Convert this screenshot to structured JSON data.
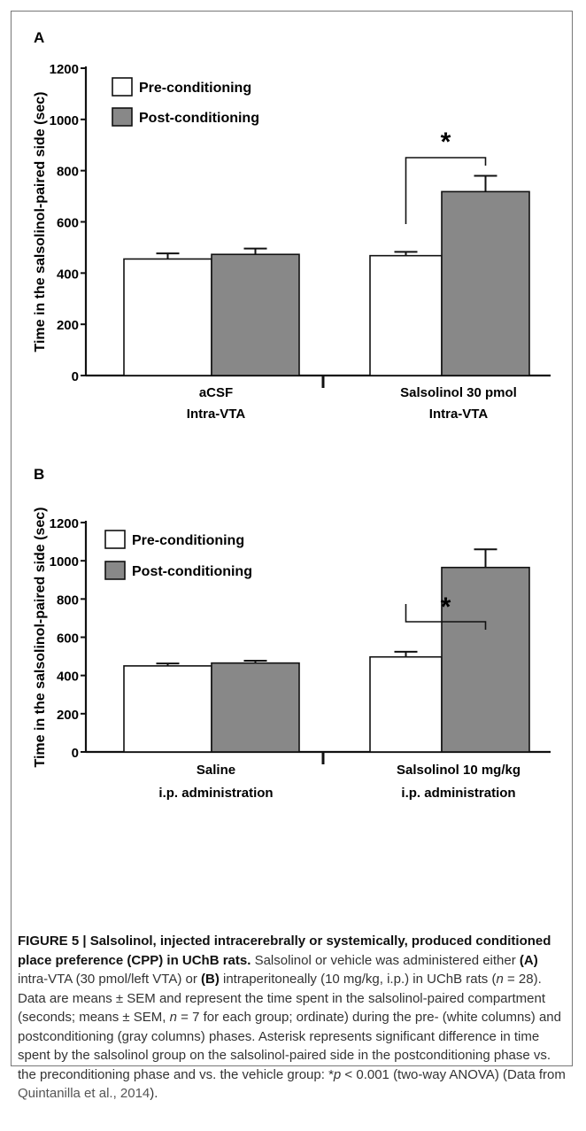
{
  "chart_data": [
    {
      "type": "bar",
      "panel": "A",
      "ylabel": "Time in the salsolinol-paired side (sec)",
      "ylim": [
        0,
        1200
      ],
      "yticks": [
        "0",
        "200",
        "400",
        "600",
        "800",
        "1000",
        "1200"
      ],
      "categories": [
        {
          "line1": "aCSF",
          "line2": "Intra-VTA"
        },
        {
          "line1": "Salsolinol 30 pmol",
          "line2": "Intra-VTA"
        }
      ],
      "series": [
        {
          "name": "Pre-conditioning",
          "color": "#ffffff",
          "values": [
            455,
            468
          ],
          "errors": [
            22,
            15
          ]
        },
        {
          "name": "Post-conditioning",
          "color": "#888888",
          "values": [
            473,
            718
          ],
          "errors": [
            23,
            62
          ]
        }
      ],
      "significance": {
        "label": "*",
        "category": 1
      }
    },
    {
      "type": "bar",
      "panel": "B",
      "ylabel": "Time in the salsolinol-paired side (sec)",
      "ylim": [
        0,
        1200
      ],
      "yticks": [
        "0",
        "200",
        "400",
        "600",
        "800",
        "1000",
        "1200"
      ],
      "categories": [
        {
          "line1": "Saline",
          "line2": "i.p. administration"
        },
        {
          "line1": "Salsolinol 10 mg/kg",
          "line2": "i.p. administration"
        }
      ],
      "series": [
        {
          "name": "Pre-conditioning",
          "color": "#ffffff",
          "values": [
            450,
            497
          ],
          "errors": [
            13,
            27
          ]
        },
        {
          "name": "Post-conditioning",
          "color": "#888888",
          "values": [
            465,
            965
          ],
          "errors": [
            12,
            95
          ]
        }
      ],
      "significance": {
        "label": "*",
        "category": 1
      }
    }
  ],
  "caption": {
    "figure_label": "FIGURE 5 | Salsolinol, injected intracerebrally or systemically, produced conditioned place preference (CPP) in UChB rats.",
    "t1": " Salsolinol or vehicle was administered either ",
    "A": "(A)",
    "t2": " intra-VTA (30 pmol/left VTA) or ",
    "B": "(B)",
    "t3": " intraperitoneally (10 mg/kg, i.p.) in UChB rats (",
    "n1": "n",
    "t4": " = 28). Data are means ± SEM and represent the time spent in the salsolinol-paired compartment (seconds; means ± SEM, ",
    "n2": "n",
    "t5": " = 7 for each group; ordinate) during the pre- (white columns) and postconditioning (gray columns) phases. Asterisk represents significant difference in time spent by the salsolinol group on the salsolinol-paired side in the postconditioning phase vs. the preconditioning phase and vs. the vehicle group: *",
    "p": "p",
    "t6": " < 0.001 (two-way ANOVA) (Data from ",
    "source": "Quintanilla et al., 2014",
    "t7": ")."
  }
}
